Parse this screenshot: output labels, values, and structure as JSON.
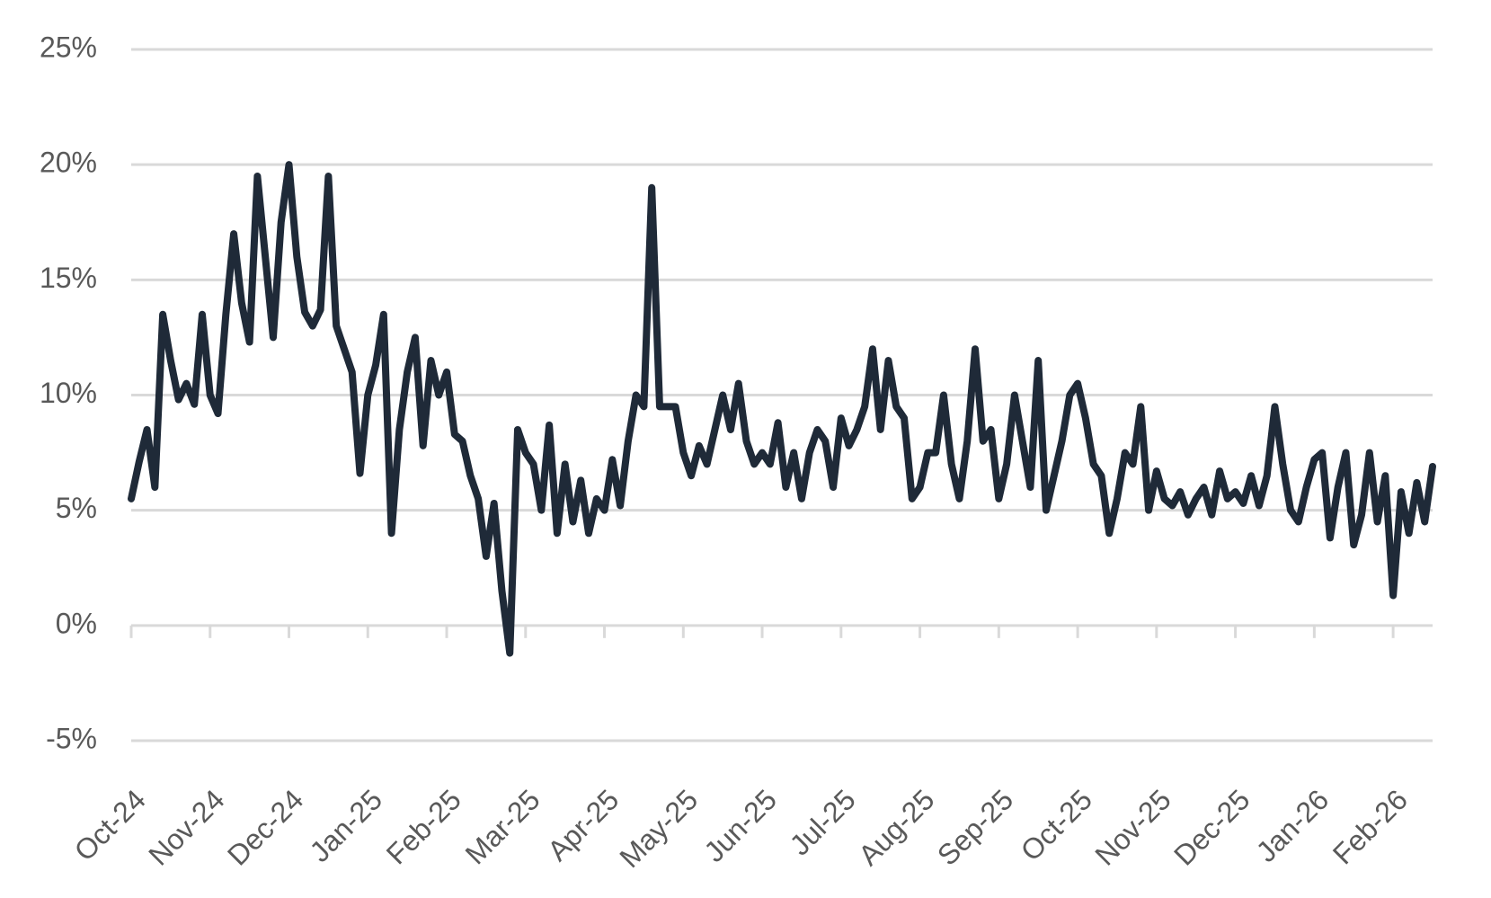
{
  "chart_data": {
    "type": "line",
    "color": "#1f2a38",
    "grid": true,
    "ylim": [
      -5,
      25
    ],
    "yticks": [
      {
        "value": -5,
        "label": "-5%"
      },
      {
        "value": 0,
        "label": "0%"
      },
      {
        "value": 5,
        "label": "5%"
      },
      {
        "value": 10,
        "label": "10%"
      },
      {
        "value": 15,
        "label": "15%"
      },
      {
        "value": 20,
        "label": "20%"
      },
      {
        "value": 25,
        "label": "25%"
      }
    ],
    "categories": [
      "Oct-24",
      null,
      null,
      null,
      null,
      null,
      null,
      null,
      null,
      null,
      "Nov-24",
      null,
      null,
      null,
      null,
      null,
      null,
      null,
      null,
      null,
      "Dec-24",
      null,
      null,
      null,
      null,
      null,
      null,
      null,
      null,
      null,
      "Jan-25",
      null,
      null,
      null,
      null,
      null,
      null,
      null,
      null,
      null,
      "Feb-25",
      null,
      null,
      null,
      null,
      null,
      null,
      null,
      null,
      null,
      "Mar-25",
      null,
      null,
      null,
      null,
      null,
      null,
      null,
      null,
      null,
      "Apr-25",
      null,
      null,
      null,
      null,
      null,
      null,
      null,
      null,
      null,
      "May-25",
      null,
      null,
      null,
      null,
      null,
      null,
      null,
      null,
      null,
      "Jun-25",
      null,
      null,
      null,
      null,
      null,
      null,
      null,
      null,
      null,
      "Jul-25",
      null,
      null,
      null,
      null,
      null,
      null,
      null,
      null,
      null,
      "Aug-25",
      null,
      null,
      null,
      null,
      null,
      null,
      null,
      null,
      null,
      "Sep-25",
      null,
      null,
      null,
      null,
      null,
      null,
      null,
      null,
      null,
      "Oct-25",
      null,
      null,
      null,
      null,
      null,
      null,
      null,
      null,
      null,
      "Nov-25",
      null,
      null,
      null,
      null,
      null,
      null,
      null,
      null,
      null,
      "Dec-25",
      null,
      null,
      null,
      null,
      null,
      null,
      null,
      null,
      null,
      "Jan-26",
      null,
      null,
      null,
      null,
      null,
      null,
      null,
      null,
      null,
      "Feb-26",
      null,
      null,
      null,
      null,
      null
    ],
    "values": [
      5.5,
      7.1,
      8.5,
      6.0,
      13.5,
      11.5,
      9.8,
      10.5,
      9.6,
      13.5,
      10.0,
      9.2,
      13.5,
      17.0,
      14.0,
      12.3,
      19.5,
      16.0,
      12.5,
      17.5,
      20.0,
      16.0,
      13.6,
      13.0,
      13.7,
      19.5,
      13.0,
      12.0,
      11.0,
      6.6,
      10.0,
      11.3,
      13.5,
      4.0,
      8.5,
      11.0,
      12.5,
      7.8,
      11.5,
      10.0,
      11.0,
      8.3,
      8.0,
      6.5,
      5.5,
      3.0,
      5.3,
      1.5,
      -1.2,
      8.5,
      7.5,
      7.0,
      5.0,
      8.7,
      4.0,
      7.0,
      4.5,
      6.3,
      4.0,
      5.5,
      5.0,
      7.2,
      5.2,
      8.0,
      10.0,
      9.5,
      19.0,
      9.5,
      9.5,
      9.5,
      7.5,
      6.5,
      7.8,
      7.0,
      8.5,
      10.0,
      8.5,
      10.5,
      8.0,
      7.0,
      7.5,
      7.0,
      8.8,
      6.0,
      7.5,
      5.5,
      7.5,
      8.5,
      8.0,
      6.0,
      9.0,
      7.8,
      8.5,
      9.5,
      12.0,
      8.5,
      11.5,
      9.5,
      9.0,
      5.5,
      6.0,
      7.5,
      7.5,
      10.0,
      7.0,
      5.5,
      8.0,
      12.0,
      8.0,
      8.5,
      5.5,
      7.0,
      10.0,
      8.0,
      6.0,
      11.5,
      5.0,
      6.5,
      8.0,
      10.0,
      10.5,
      9.0,
      7.0,
      6.5,
      4.0,
      5.5,
      7.5,
      7.0,
      9.5,
      5.0,
      6.7,
      5.5,
      5.2,
      5.8,
      4.8,
      5.5,
      6.0,
      4.8,
      6.7,
      5.5,
      5.8,
      5.3,
      6.5,
      5.2,
      6.5,
      9.5,
      7.0,
      5.0,
      4.5,
      6.0,
      7.2,
      7.5,
      3.8,
      6.0,
      7.5,
      3.5,
      4.8,
      7.5,
      4.5,
      6.5,
      1.3,
      5.8,
      4.0,
      6.2,
      4.5,
      6.9
    ]
  }
}
